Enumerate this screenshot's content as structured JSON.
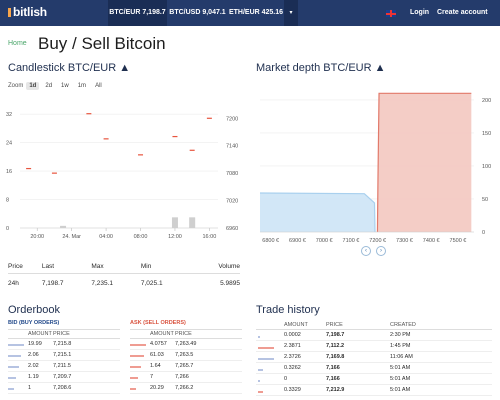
{
  "nav": {
    "logo": "bitlish",
    "tickers": [
      "BTC/EUR 7,198.7",
      "BTC/USD 9,047.1",
      "ETH/EUR 425.16"
    ],
    "dropdown_icon": "caret-down",
    "login": "Login",
    "create_account": "Create account",
    "colors": {
      "nav_bg": "#243b6b",
      "active_bg": "#1a2d55",
      "logo_accent": "#f7a54a"
    }
  },
  "breadcrumb": "Home",
  "page_title": "Buy / Sell Bitcoin",
  "candlestick": {
    "title": "Candlestick BTC/EUR ▲",
    "zoom_label": "Zoom",
    "zoom_options": [
      "1d",
      "2d",
      "1w",
      "1m",
      "All"
    ],
    "selected_zoom": "1d"
  },
  "depth": {
    "title": "Market depth BTC/EUR ▲"
  },
  "chart_data": [
    {
      "type": "candlestick",
      "title": "Candlestick BTC/EUR",
      "x_ticks": [
        "20:00",
        "24. Mar",
        "04:00",
        "08:00",
        "12:00",
        "16:00"
      ],
      "y_left_ticks": [
        "0",
        "8",
        "16",
        "24",
        "32"
      ],
      "y_left_label": "",
      "y_right_ticks": [
        "6960",
        "7020",
        "7080",
        "7140",
        "7200"
      ],
      "ylim_left": [
        0,
        36
      ],
      "ylim_right": [
        6960,
        7240
      ],
      "candles": [
        {
          "x": "19:00",
          "price": 7090
        },
        {
          "x": "22:00",
          "price": 7080
        },
        {
          "x": "02:00",
          "price": 7210
        },
        {
          "x": "04:00",
          "price": 7155
        },
        {
          "x": "08:00",
          "price": 7120
        },
        {
          "x": "12:00",
          "price": 7160
        },
        {
          "x": "14:00",
          "price": 7130
        },
        {
          "x": "16:00",
          "price": 7200
        }
      ],
      "volumes": [
        {
          "x": "23:00",
          "value": 0.6
        },
        {
          "x": "12:00",
          "value": 3
        },
        {
          "x": "14:00",
          "value": 3
        }
      ]
    },
    {
      "type": "area",
      "title": "Market depth BTC/EUR",
      "x_ticks": [
        "6800 €",
        "6900 €",
        "7000 €",
        "7100 €",
        "7200 €",
        "7300 €",
        "7400 €",
        "7500 €"
      ],
      "y_ticks": [
        "0",
        "50",
        "100",
        "150",
        "200"
      ],
      "ylim": [
        0,
        215
      ],
      "series": [
        {
          "side": "bid",
          "color": "#a9d0ee",
          "points": [
            [
              6760,
              59
            ],
            [
              7150,
              58
            ],
            [
              7188,
              44
            ],
            [
              7190,
              0
            ]
          ]
        },
        {
          "side": "ask",
          "color": "#e2796a",
          "points": [
            [
              7199,
              0
            ],
            [
              7201,
              80
            ],
            [
              7205,
              210
            ],
            [
              7550,
              210
            ]
          ]
        }
      ]
    }
  ],
  "stats": {
    "headers": [
      "Price",
      "Last",
      "Max",
      "Min",
      "Volume"
    ],
    "values": [
      "24h",
      "7,198.7",
      "7,235.1",
      "7,025.1",
      "5.9895"
    ]
  },
  "orderbook": {
    "title": "Orderbook",
    "bid": {
      "title": "BID (BUY ORDERS)",
      "headers": [
        "AMOUNT",
        "PRICE"
      ],
      "rows": [
        {
          "amount": "19.99",
          "price": "7,215.8",
          "depth": 1.0
        },
        {
          "amount": "2.06",
          "price": "7,215.1",
          "depth": 0.8
        },
        {
          "amount": "2.02",
          "price": "7,211.5",
          "depth": 0.7
        },
        {
          "amount": "1.19",
          "price": "7,209.7",
          "depth": 0.5
        },
        {
          "amount": "1",
          "price": "7,208.6",
          "depth": 0.4
        }
      ]
    },
    "ask": {
      "title": "ASK (SELL ORDERS)",
      "headers": [
        "AMOUNT",
        "PRICE"
      ],
      "rows": [
        {
          "amount": "4.0757",
          "price": "7,263.49",
          "depth": 1.0
        },
        {
          "amount": "61.03",
          "price": "7,263.5",
          "depth": 0.9
        },
        {
          "amount": "1.64",
          "price": "7,265.7",
          "depth": 0.7
        },
        {
          "amount": "7",
          "price": "7,266",
          "depth": 0.5
        },
        {
          "amount": "20.29",
          "price": "7,266.2",
          "depth": 0.4
        }
      ]
    }
  },
  "trade_history": {
    "title": "Trade history",
    "headers": [
      "AMOUNT",
      "PRICE",
      "CREATED"
    ],
    "rows": [
      {
        "amount": "0.0002",
        "price": "7,198.7",
        "created": "2:30 PM",
        "side": "buy",
        "size": 0.05
      },
      {
        "amount": "2.3871",
        "price": "7,112.2",
        "created": "1:45 PM",
        "side": "sell",
        "size": 1.0
      },
      {
        "amount": "2.3726",
        "price": "7,169.8",
        "created": "11:06 AM",
        "side": "buy",
        "size": 1.0
      },
      {
        "amount": "0.3262",
        "price": "7,166",
        "created": "5:01 AM",
        "side": "buy",
        "size": 0.3
      },
      {
        "amount": "0",
        "price": "7,166",
        "created": "5:01 AM",
        "side": "buy",
        "size": 0.05
      },
      {
        "amount": "0.3329",
        "price": "7,212.9",
        "created": "5:01 AM",
        "side": "sell",
        "size": 0.3
      }
    ]
  }
}
